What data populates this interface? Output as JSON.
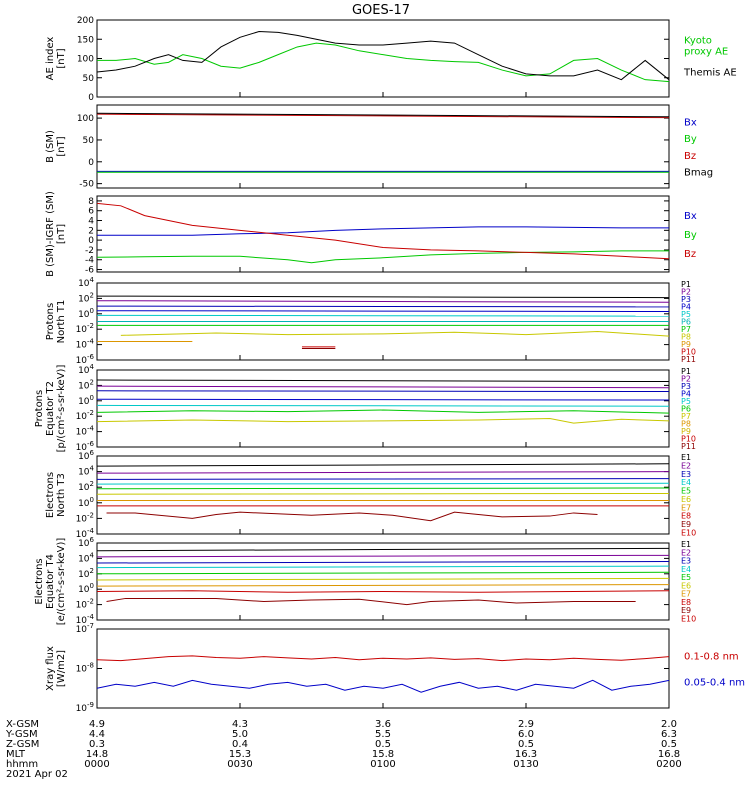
{
  "title": "GOES-17",
  "colors": {
    "black": "#000000",
    "green": "#00c800",
    "blue": "#0000c8",
    "red": "#c80000",
    "darkred": "#8c0000",
    "purple": "#7a0096",
    "navy": "#0000b4",
    "cyan": "#00c8c8",
    "teal": "#00b4b4",
    "yellow": "#c8c800",
    "orange": "#dc9600",
    "gold": "#d2b400"
  },
  "chart_data": [
    {
      "type": "line",
      "id": "ae",
      "ylabel": "AE index\n[nT]",
      "ylim": [
        0,
        200
      ],
      "yticks": [
        "0",
        "50",
        "100",
        "150",
        "200"
      ],
      "x_range": [
        "0000",
        "0200"
      ],
      "series": [
        {
          "name": "Kyoto\nproxy AE",
          "color": "#00c800",
          "x": [
            0,
            4,
            8,
            12,
            15,
            18,
            22,
            26,
            30,
            34,
            38,
            42,
            46,
            50,
            55,
            60,
            65,
            70,
            75,
            80,
            85,
            90,
            95,
            100,
            105,
            110,
            115,
            120
          ],
          "values": [
            95,
            95,
            100,
            85,
            90,
            110,
            100,
            80,
            75,
            90,
            110,
            130,
            140,
            135,
            120,
            110,
            100,
            95,
            92,
            90,
            70,
            55,
            60,
            95,
            100,
            70,
            45,
            40
          ]
        },
        {
          "name": "Themis AE",
          "color": "#000000",
          "x": [
            0,
            4,
            8,
            12,
            15,
            18,
            22,
            26,
            30,
            34,
            38,
            42,
            46,
            50,
            55,
            60,
            65,
            70,
            75,
            80,
            85,
            90,
            95,
            100,
            105,
            110,
            115,
            120
          ],
          "values": [
            65,
            70,
            80,
            100,
            110,
            95,
            90,
            130,
            155,
            170,
            168,
            160,
            150,
            140,
            135,
            135,
            140,
            145,
            140,
            110,
            80,
            60,
            55,
            55,
            70,
            45,
            95,
            45
          ]
        }
      ]
    },
    {
      "type": "line",
      "id": "bsm",
      "ylabel": "B (SM)\n[nT]",
      "ylim": [
        -60,
        130
      ],
      "yticks": [
        "-50",
        "0",
        "50",
        "100"
      ],
      "series": [
        {
          "name": "Bx",
          "color": "#0000c8",
          "x": [
            0,
            120
          ],
          "values": [
            -22,
            -22
          ]
        },
        {
          "name": "By",
          "color": "#00c800",
          "x": [
            0,
            120
          ],
          "values": [
            -24,
            -24
          ]
        },
        {
          "name": "Bz",
          "color": "#c80000",
          "x": [
            0,
            120
          ],
          "values": [
            109,
            101
          ]
        },
        {
          "name": "Bmag",
          "color": "#000000",
          "x": [
            0,
            120
          ],
          "values": [
            111,
            103
          ]
        }
      ]
    },
    {
      "type": "line",
      "id": "bsm_igrf",
      "ylabel": "B (SM)-IGRF (SM)\n[nT]",
      "ylim": [
        -6.5,
        9
      ],
      "yticks": [
        "-6",
        "-4",
        "-2",
        "0",
        "2",
        "4",
        "6",
        "8"
      ],
      "series": [
        {
          "name": "Bx",
          "color": "#0000c8",
          "x": [
            0,
            10,
            20,
            30,
            40,
            50,
            60,
            70,
            80,
            90,
            100,
            110,
            120
          ],
          "values": [
            1,
            1,
            1,
            1.3,
            1.5,
            2,
            2.3,
            2.5,
            2.7,
            2.7,
            2.6,
            2.5,
            2.5
          ]
        },
        {
          "name": "By",
          "color": "#00c800",
          "x": [
            0,
            10,
            20,
            30,
            40,
            45,
            50,
            60,
            70,
            80,
            90,
            100,
            110,
            120
          ],
          "values": [
            -3.5,
            -3.4,
            -3.3,
            -3.3,
            -4,
            -4.6,
            -4,
            -3.6,
            -3,
            -2.7,
            -2.5,
            -2.4,
            -2.2,
            -2.2
          ]
        },
        {
          "name": "Bz",
          "color": "#c80000",
          "x": [
            0,
            5,
            10,
            20,
            30,
            40,
            50,
            60,
            70,
            80,
            90,
            100,
            110,
            120
          ],
          "values": [
            7.5,
            7,
            5,
            3,
            2,
            1,
            0,
            -1.5,
            -2,
            -2.2,
            -2.5,
            -2.8,
            -3.3,
            -3.8
          ]
        }
      ]
    },
    {
      "type": "line",
      "id": "protons_t1",
      "ylabel": "Protons\nNorth T1",
      "ylim": [
        -6,
        4
      ],
      "log": true,
      "yticks": [
        "10^4",
        "10^2",
        "10^0",
        "10^-2",
        "10^-4",
        "10^-6"
      ],
      "series": [
        {
          "name": "P1",
          "color": "#000000",
          "x": [
            0,
            120
          ],
          "values": [
            2.3,
            2.1
          ]
        },
        {
          "name": "P2",
          "color": "#7a0096",
          "x": [
            0,
            120
          ],
          "values": [
            1.7,
            1.5
          ]
        },
        {
          "name": "P3",
          "color": "#0000b4",
          "x": [
            0,
            120
          ],
          "values": [
            1.0,
            0.9
          ]
        },
        {
          "name": "P4",
          "color": "#0000c8",
          "x": [
            0,
            120
          ],
          "values": [
            0.4,
            0.3
          ]
        },
        {
          "name": "P5",
          "color": "#00c8c8",
          "x": [
            0,
            120
          ],
          "values": [
            -0.2,
            -0.3
          ]
        },
        {
          "name": "P6",
          "color": "#00b4b4",
          "x": [
            0,
            120
          ],
          "values": [
            -1.0,
            -1.0
          ]
        },
        {
          "name": "P7",
          "color": "#00c800",
          "x": [
            0,
            120
          ],
          "values": [
            -1.5,
            -1.5
          ]
        },
        {
          "name": "P8",
          "color": "#c8c800",
          "x": [
            5,
            25,
            40,
            60,
            75,
            90,
            105,
            120
          ],
          "values": [
            -2.8,
            -2.5,
            -2.7,
            -2.6,
            -2.4,
            -2.7,
            -2.3,
            -2.9
          ]
        },
        {
          "name": "P9",
          "color": "#dc9600",
          "x": [
            0,
            20
          ],
          "values": [
            -3.6,
            -3.6
          ]
        },
        {
          "name": "P10",
          "color": "#c80000",
          "x": [
            43,
            50
          ],
          "values": [
            -4.3,
            -4.3
          ]
        },
        {
          "name": "P11",
          "color": "#8c0000",
          "x": [
            43,
            50
          ],
          "values": [
            -4.5,
            -4.5
          ]
        }
      ]
    },
    {
      "type": "line",
      "id": "protons_t2",
      "ylabel": "Protons\nEquator T2\n[p/(cm²-s-sr-keV)]",
      "ylim": [
        -6,
        4
      ],
      "log": true,
      "yticks": [
        "10^4",
        "10^2",
        "10^0",
        "10^-2",
        "10^-4",
        "10^-6"
      ],
      "series": [
        {
          "name": "P1",
          "color": "#000000",
          "x": [
            0,
            120
          ],
          "values": [
            2.7,
            2.5
          ]
        },
        {
          "name": "P2",
          "color": "#7a0096",
          "x": [
            0,
            120
          ],
          "values": [
            1.9,
            1.7
          ]
        },
        {
          "name": "P3",
          "color": "#0000b4",
          "x": [
            0,
            120
          ],
          "values": [
            1.3,
            1.2
          ]
        },
        {
          "name": "P4",
          "color": "#0000c8",
          "x": [
            0,
            120
          ],
          "values": [
            0.2,
            0.1
          ]
        },
        {
          "name": "P5",
          "color": "#00c8c8",
          "x": [
            0,
            120
          ],
          "values": [
            -0.6,
            -0.7
          ]
        },
        {
          "name": "P6",
          "color": "#00c800",
          "x": [
            0,
            20,
            40,
            60,
            80,
            100,
            120
          ],
          "values": [
            -1.5,
            -1.3,
            -1.4,
            -1.2,
            -1.5,
            -1.3,
            -1.6
          ]
        },
        {
          "name": "P7",
          "color": "#c8c800",
          "x": [
            0,
            20,
            40,
            60,
            80,
            95,
            100,
            110,
            120
          ],
          "values": [
            -2.7,
            -2.5,
            -2.7,
            -2.6,
            -2.5,
            -2.3,
            -2.9,
            -2.4,
            -2.6
          ]
        },
        {
          "name": "P8",
          "color": "#dc9600",
          "x": [],
          "values": []
        },
        {
          "name": "P9",
          "color": "#d2b400",
          "x": [],
          "values": []
        },
        {
          "name": "P10",
          "color": "#c80000",
          "x": [],
          "values": []
        },
        {
          "name": "P11",
          "color": "#8c0000",
          "x": [],
          "values": []
        }
      ]
    },
    {
      "type": "line",
      "id": "electrons_t3",
      "ylabel": "Electrons\nNorth T3",
      "ylim": [
        -4,
        6
      ],
      "log": true,
      "yticks": [
        "10^6",
        "10^4",
        "10^2",
        "10^0",
        "10^-2",
        "10^-4"
      ],
      "series": [
        {
          "name": "E1",
          "color": "#000000",
          "x": [
            0,
            120
          ],
          "values": [
            4.7,
            5.0
          ]
        },
        {
          "name": "E2",
          "color": "#7a0096",
          "x": [
            0,
            120
          ],
          "values": [
            3.8,
            4.0
          ]
        },
        {
          "name": "E3",
          "color": "#0000b4",
          "x": [
            0,
            120
          ],
          "values": [
            3.0,
            3.1
          ]
        },
        {
          "name": "E4",
          "color": "#00c8c8",
          "x": [
            0,
            120
          ],
          "values": [
            2.4,
            2.5
          ]
        },
        {
          "name": "E5",
          "color": "#00c800",
          "x": [
            0,
            120
          ],
          "values": [
            1.8,
            1.9
          ]
        },
        {
          "name": "E6",
          "color": "#c8c800",
          "x": [
            0,
            120
          ],
          "values": [
            1.1,
            1.2
          ]
        },
        {
          "name": "E7",
          "color": "#dc9600",
          "x": [
            0,
            120
          ],
          "values": [
            0.3,
            0.3
          ]
        },
        {
          "name": "E8",
          "color": "#c80000",
          "x": [
            0,
            120
          ],
          "values": [
            -0.4,
            -0.4
          ]
        },
        {
          "name": "E9",
          "color": "#8c0000",
          "x": [
            2,
            8,
            20,
            25,
            30,
            45,
            55,
            62,
            70,
            75,
            80,
            85,
            95,
            100,
            105
          ],
          "values": [
            -1.3,
            -1.3,
            -2,
            -1.5,
            -1.2,
            -1.6,
            -1.3,
            -1.6,
            -2.3,
            -1.2,
            -1.5,
            -1.8,
            -1.7,
            -1.3,
            -1.5
          ]
        },
        {
          "name": "E10",
          "color": "#c80000",
          "x": [],
          "values": []
        }
      ]
    },
    {
      "type": "line",
      "id": "electrons_t4",
      "ylabel": "Electrons\nEquator T4\n[e/(cm²-s-sr-keV)]",
      "ylim": [
        -4,
        6
      ],
      "log": true,
      "yticks": [
        "10^6",
        "10^4",
        "10^2",
        "10^0",
        "10^-2",
        "10^-4"
      ],
      "series": [
        {
          "name": "E1",
          "color": "#000000",
          "x": [
            0,
            120
          ],
          "values": [
            5.0,
            5.3
          ]
        },
        {
          "name": "E2",
          "color": "#7a0096",
          "x": [
            0,
            120
          ],
          "values": [
            4.2,
            4.4
          ]
        },
        {
          "name": "E3",
          "color": "#0000b4",
          "x": [
            0,
            120
          ],
          "values": [
            3.4,
            3.6
          ]
        },
        {
          "name": "E4",
          "color": "#00c8c8",
          "x": [
            0,
            120
          ],
          "values": [
            2.8,
            3.0
          ]
        },
        {
          "name": "E5",
          "color": "#00c800",
          "x": [
            0,
            120
          ],
          "values": [
            2.0,
            2.2
          ]
        },
        {
          "name": "E6",
          "color": "#c8c800",
          "x": [
            0,
            120
          ],
          "values": [
            1.2,
            1.4
          ]
        },
        {
          "name": "E7",
          "color": "#dc9600",
          "x": [
            0,
            120
          ],
          "values": [
            0.4,
            0.6
          ]
        },
        {
          "name": "E8",
          "color": "#c80000",
          "x": [
            0,
            20,
            40,
            60,
            80,
            100,
            120
          ],
          "values": [
            -0.3,
            -0.2,
            -0.4,
            -0.3,
            -0.4,
            -0.3,
            -0.2
          ]
        },
        {
          "name": "E9",
          "color": "#8c0000",
          "x": [
            2,
            6,
            25,
            35,
            45,
            55,
            65,
            70,
            80,
            88,
            100,
            108,
            113
          ],
          "values": [
            -1.6,
            -1.2,
            -1.2,
            -1.6,
            -1.4,
            -1.3,
            -2.0,
            -1.6,
            -1.4,
            -1.8,
            -1.6,
            -1.6,
            -1.6
          ]
        },
        {
          "name": "E10",
          "color": "#c80000",
          "x": [],
          "values": []
        }
      ]
    },
    {
      "type": "line",
      "id": "xray",
      "ylabel": "Xray flux\n[W/m2]",
      "ylim": [
        -9,
        -7
      ],
      "log": true,
      "yticks": [
        "10^-7",
        "10^-8",
        "10^-9"
      ],
      "series": [
        {
          "name": "0.1-0.8 nm",
          "color": "#c80000",
          "x": [
            0,
            5,
            10,
            15,
            20,
            25,
            30,
            35,
            40,
            45,
            50,
            55,
            60,
            65,
            70,
            75,
            80,
            85,
            90,
            95,
            100,
            105,
            110,
            115,
            120
          ],
          "values": [
            -7.78,
            -7.8,
            -7.75,
            -7.7,
            -7.68,
            -7.72,
            -7.74,
            -7.7,
            -7.73,
            -7.76,
            -7.72,
            -7.78,
            -7.74,
            -7.76,
            -7.73,
            -7.77,
            -7.75,
            -7.8,
            -7.76,
            -7.78,
            -7.74,
            -7.77,
            -7.79,
            -7.75,
            -7.7
          ]
        },
        {
          "name": "0.05-0.4 nm",
          "color": "#0000c8",
          "x": [
            0,
            4,
            8,
            12,
            16,
            20,
            24,
            28,
            32,
            36,
            40,
            44,
            48,
            52,
            56,
            60,
            64,
            68,
            72,
            76,
            80,
            84,
            88,
            92,
            96,
            100,
            104,
            108,
            112,
            116,
            120
          ],
          "values": [
            -8.5,
            -8.4,
            -8.45,
            -8.35,
            -8.45,
            -8.3,
            -8.4,
            -8.45,
            -8.5,
            -8.4,
            -8.35,
            -8.45,
            -8.4,
            -8.55,
            -8.45,
            -8.5,
            -8.4,
            -8.6,
            -8.45,
            -8.35,
            -8.5,
            -8.45,
            -8.55,
            -8.4,
            -8.45,
            -8.5,
            -8.3,
            -8.55,
            -8.45,
            -8.4,
            -8.3
          ]
        }
      ]
    }
  ],
  "xaxis": {
    "row_labels": [
      "X-GSM",
      "Y-GSM",
      "Z-GSM",
      "MLT",
      "hhmm"
    ],
    "date": "2021 Apr 02",
    "columns": [
      [
        "4.9",
        "4.4",
        "0.3",
        "14.8",
        "0000"
      ],
      [
        "4.3",
        "5.0",
        "0.4",
        "15.3",
        "0030"
      ],
      [
        "3.6",
        "5.5",
        "0.5",
        "15.8",
        "0100"
      ],
      [
        "2.9",
        "6.0",
        "0.5",
        "16.3",
        "0130"
      ],
      [
        "2.0",
        "6.3",
        "0.5",
        "16.8",
        "0200"
      ]
    ]
  }
}
